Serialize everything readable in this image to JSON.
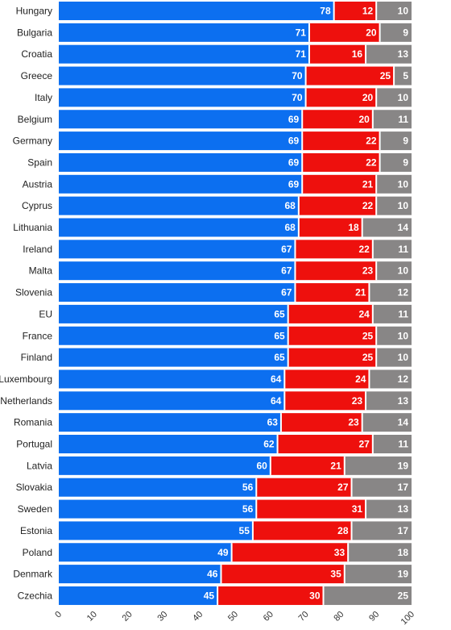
{
  "chart_data": {
    "type": "bar",
    "orientation": "horizontal",
    "stacked": true,
    "categories": [
      "Hungary",
      "Bulgaria",
      "Croatia",
      "Greece",
      "Italy",
      "Belgium",
      "Germany",
      "Spain",
      "Austria",
      "Cyprus",
      "Lithuania",
      "Ireland",
      "Malta",
      "Slovenia",
      "EU",
      "France",
      "Finland",
      "Luxembourg",
      "Netherlands",
      "Romania",
      "Portugal",
      "Latvia",
      "Slovakia",
      "Sweden",
      "Estonia",
      "Poland",
      "Denmark",
      "Czechia"
    ],
    "series": [
      {
        "color": "#0c6ff0",
        "values": [
          78,
          71,
          71,
          70,
          70,
          69,
          69,
          69,
          69,
          68,
          68,
          67,
          67,
          67,
          65,
          65,
          65,
          64,
          64,
          63,
          62,
          60,
          56,
          56,
          55,
          49,
          46,
          45
        ]
      },
      {
        "color": "#ee100d",
        "values": [
          12,
          20,
          16,
          25,
          20,
          20,
          22,
          22,
          21,
          22,
          18,
          22,
          23,
          21,
          24,
          25,
          25,
          24,
          23,
          23,
          27,
          21,
          27,
          31,
          28,
          33,
          35,
          30
        ]
      },
      {
        "color": "#888686",
        "values": [
          10,
          9,
          13,
          5,
          10,
          11,
          9,
          9,
          10,
          10,
          14,
          11,
          10,
          12,
          11,
          10,
          10,
          12,
          13,
          14,
          11,
          19,
          17,
          13,
          17,
          18,
          19,
          25
        ]
      }
    ],
    "xlim": [
      0,
      100
    ],
    "xticks": [
      "0",
      "10",
      "20",
      "30",
      "40",
      "50",
      "60",
      "70",
      "80",
      "90",
      "100"
    ],
    "grid": false,
    "legend": "none"
  }
}
